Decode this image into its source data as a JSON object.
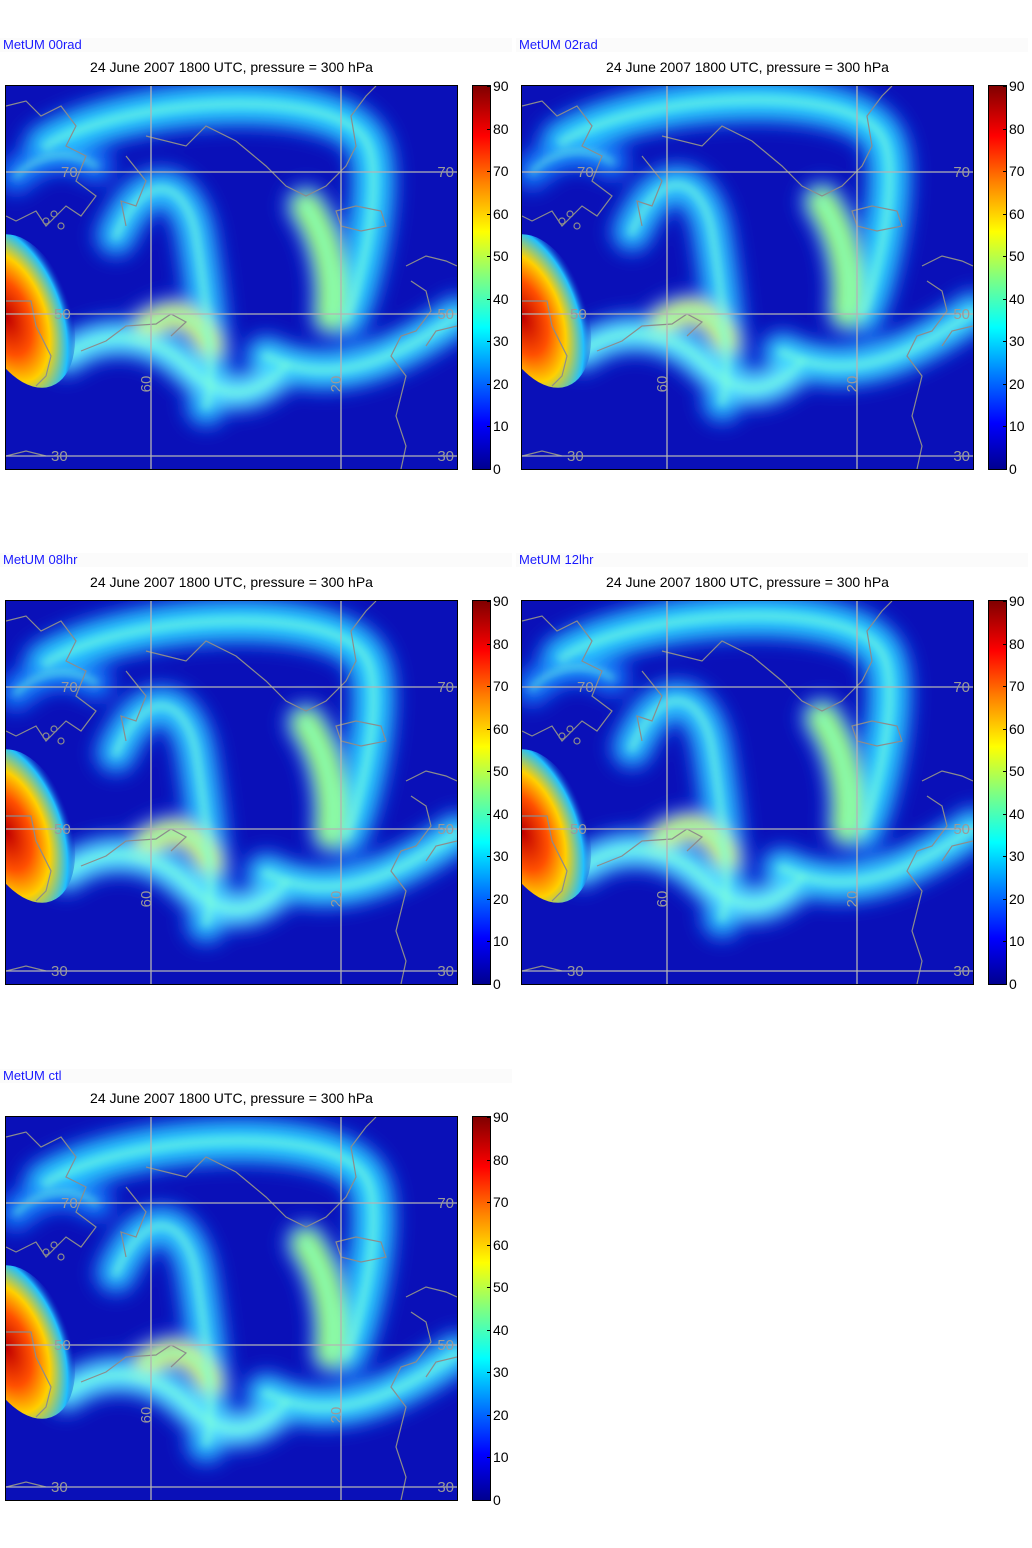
{
  "panels": [
    {
      "run": "MetUM 00rad",
      "title": "24 June 2007 1800 UTC, pressure = 300 hPa"
    },
    {
      "run": "MetUM 02rad",
      "title": "24 June 2007 1800 UTC, pressure = 300 hPa"
    },
    {
      "run": "MetUM 08lhr",
      "title": "24 June 2007 1800 UTC, pressure = 300 hPa"
    },
    {
      "run": "MetUM 12lhr",
      "title": "24 June 2007 1800 UTC, pressure = 300 hPa"
    },
    {
      "run": "MetUM ctl",
      "title": "24 June 2007 1800 UTC, pressure = 300 hPa"
    }
  ],
  "colorbar": {
    "ticks": [
      "0",
      "10",
      "20",
      "30",
      "40",
      "50",
      "60",
      "70",
      "80",
      "90"
    ],
    "range": [
      0,
      90
    ],
    "colormap": "jet"
  },
  "grid_labels": {
    "lat_70": "70",
    "lat_50": "50",
    "lat_30": "30",
    "lon_60": "60",
    "lon_20": "20"
  },
  "colors": {
    "run_label": "#1a1aff",
    "grid": "#b4b4b4",
    "coast": "#8c8c8c",
    "background_field": "#0a10b8"
  }
}
